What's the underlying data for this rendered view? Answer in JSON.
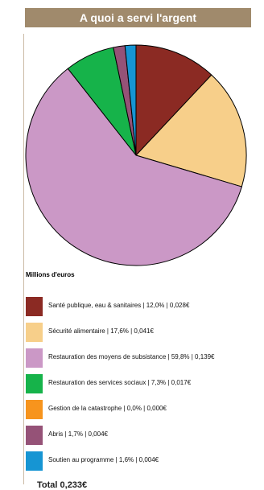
{
  "header": {
    "title": "A quoi a servi l'argent"
  },
  "chart_data": {
    "type": "pie",
    "title": "A quoi a servi l'argent",
    "units_label": "Millions d'euros",
    "slices": [
      {
        "name": "Santé publique, eau & sanitaires",
        "percent": 12.0,
        "value": 0.028,
        "legend_text": "Santé publique, eau & sanitaires | 12,0% | 0,028€",
        "color": "#8b2a23"
      },
      {
        "name": "Sécurité alimentaire",
        "percent": 17.6,
        "value": 0.041,
        "legend_text": "Sécurité alimentaire | 17,6% | 0,041€",
        "color": "#f7cf8a"
      },
      {
        "name": "Restauration des moyens de subsistance",
        "percent": 59.8,
        "value": 0.139,
        "legend_text": "Restauration des moyens de subsistance | 59,8% | 0,139€",
        "color": "#cb98c6"
      },
      {
        "name": "Restauration des services sociaux",
        "percent": 7.3,
        "value": 0.017,
        "legend_text": "Restauration des services sociaux | 7,3% | 0,017€",
        "color": "#16b34a"
      },
      {
        "name": "Gestion de la catastrophe",
        "percent": 0.0,
        "value": 0.0,
        "legend_text": "Gestion de la catastrophe | 0,0% | 0,000€",
        "color": "#f7941d"
      },
      {
        "name": "Abris",
        "percent": 1.7,
        "value": 0.004,
        "legend_text": "Abris | 1,7% | 0,004€",
        "color": "#955277"
      },
      {
        "name": "Soutien au programme",
        "percent": 1.6,
        "value": 0.004,
        "legend_text": "Soutien au programme | 1,6% | 0,004€",
        "color": "#1695d3"
      }
    ],
    "total_text": "Total 0,233€",
    "total": 0.233
  }
}
